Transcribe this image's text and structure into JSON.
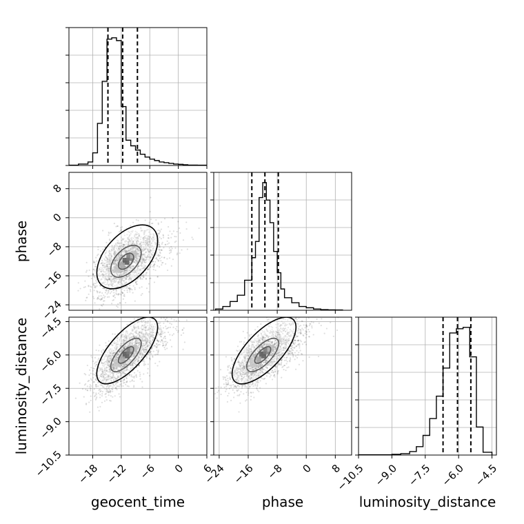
{
  "chart_data": {
    "type": "corner",
    "parameters": [
      "geocent_time",
      "phase",
      "luminosity_distance"
    ],
    "axes": {
      "geocent_time": {
        "lim": [
          -23,
          6
        ],
        "ticks": [
          -18,
          -12,
          -6,
          0,
          6
        ],
        "tick_labels": [
          "−18",
          "−12",
          "−6",
          "0",
          "6"
        ]
      },
      "phase": {
        "lim": [
          -25.5,
          12.5
        ],
        "ticks": [
          -24,
          -16,
          -8,
          0,
          8
        ],
        "tick_labels": [
          "−24",
          "−16",
          "−8",
          "0",
          "8"
        ]
      },
      "luminosity_distance": {
        "lim": [
          -10.5,
          -4.3
        ],
        "ticks": [
          -10.5,
          -9.0,
          -7.5,
          -6.0,
          -4.5
        ],
        "tick_labels": [
          "−10.5",
          "−9.0",
          "−7.5",
          "−6.0",
          "−4.5"
        ]
      }
    },
    "grid": true,
    "histograms": [
      {
        "param": "geocent_time",
        "bin_edges": [
          -23,
          -21,
          -19,
          -18,
          -17,
          -16,
          -15,
          -14,
          -13,
          -12,
          -11,
          -10,
          -9,
          -8,
          -7,
          -6,
          -5,
          -4,
          -3,
          -2,
          -1,
          0,
          1,
          2,
          4,
          6
        ],
        "counts": [
          0.2,
          1.0,
          2.5,
          9.0,
          30,
          60,
          90,
          91,
          89,
          42,
          18,
          14,
          11,
          8,
          6,
          4.5,
          3.5,
          2.5,
          2.0,
          1.5,
          1.0,
          0.8,
          0.5,
          0.3,
          0.2
        ],
        "quantiles": [
          -14.8,
          -11.7,
          -8.6
        ]
      },
      {
        "param": "phase",
        "bin_edges": [
          -25,
          -23,
          -21,
          -19,
          -17,
          -15,
          -14,
          -13,
          -12,
          -11,
          -10,
          -9,
          -8,
          -7,
          -6,
          -4,
          -2,
          0,
          2,
          4,
          6,
          8,
          10
        ],
        "counts": [
          1,
          3,
          7,
          12,
          24,
          42,
          55,
          90,
          102,
          88,
          70,
          47,
          30,
          17,
          10,
          6,
          3,
          2,
          1,
          0.5,
          0.3,
          0.2
        ],
        "quantiles": [
          -15.0,
          -11.4,
          -7.7
        ]
      },
      {
        "param": "luminosity_distance",
        "bin_edges": [
          -10.5,
          -9.0,
          -8.6,
          -8.2,
          -7.9,
          -7.6,
          -7.3,
          -7.0,
          -6.7,
          -6.4,
          -6.1,
          -5.8,
          -5.5,
          -5.2,
          -4.9,
          -4.5
        ],
        "counts": [
          0.2,
          0.5,
          1.0,
          2.5,
          6,
          14,
          26,
          42,
          62,
          87,
          90,
          91,
          70,
          20,
          2
        ],
        "quantiles": [
          -6.7,
          -6.05,
          -5.45
        ]
      }
    ],
    "pairs": [
      {
        "x": "geocent_time",
        "y": "phase",
        "center": [
          -11,
          -12
        ],
        "sd": [
          3.2,
          4.4
        ],
        "corr": 0.5,
        "contour_levels": [
          "0.5σ",
          "1σ",
          "2σ"
        ]
      },
      {
        "x": "geocent_time",
        "y": "luminosity_distance",
        "center": [
          -11,
          -6.0
        ],
        "sd": [
          3.2,
          0.75
        ],
        "corr": 0.7,
        "contour_levels": [
          "0.5σ",
          "1σ",
          "2σ"
        ]
      },
      {
        "x": "phase",
        "y": "luminosity_distance",
        "center": [
          -12,
          -6.0
        ],
        "sd": [
          4.4,
          0.75
        ],
        "corr": 0.7,
        "contour_levels": [
          "0.5σ",
          "1σ",
          "2σ"
        ]
      }
    ]
  }
}
